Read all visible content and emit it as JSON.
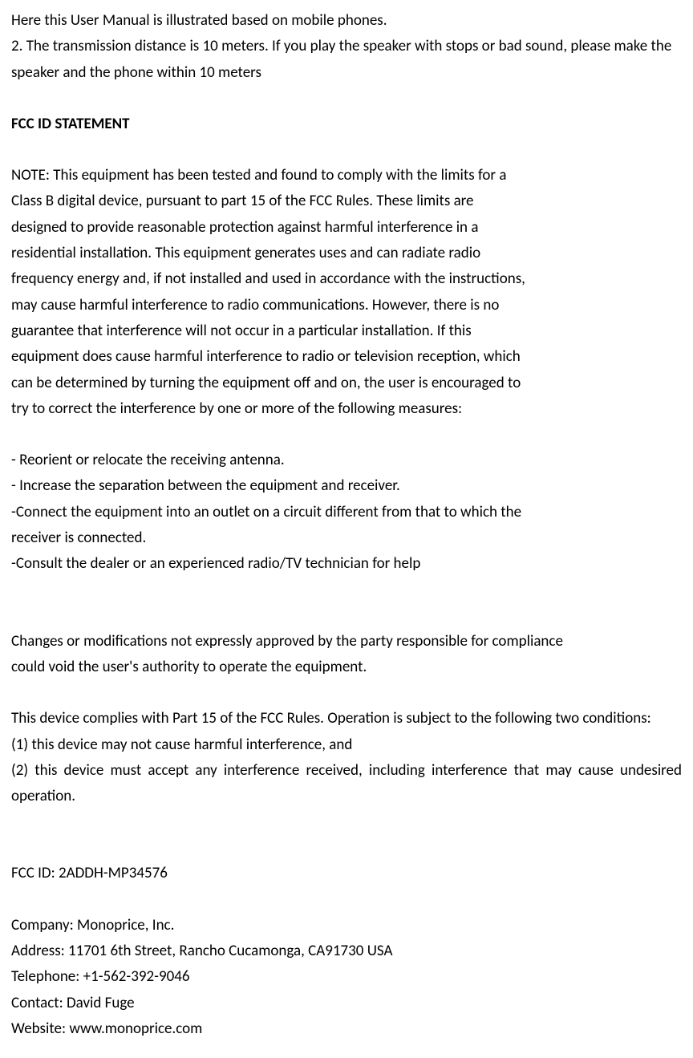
{
  "intro": {
    "line1": "Here this User Manual is illustrated based on mobile phones.",
    "line2": "2. The transmission distance is 10 meters. If you play the speaker with stops or bad sound, please make the speaker and the phone within 10 meters"
  },
  "fcc_heading": "FCC ID STATEMENT",
  "fcc_note": {
    "line1": "NOTE: This equipment has been tested and found to comply with the limits for a",
    "line2": "Class B digital device, pursuant to part 15 of the FCC Rules. These limits are",
    "line3": "designed to provide reasonable protection against harmful interference in a",
    "line4": "residential installation. This equipment generates uses and can radiate radio",
    "line5": "frequency energy and, if not installed and used in accordance with the instructions,",
    "line6": "may cause harmful interference to radio communications. However, there is no",
    "line7": "guarantee that interference will not occur in a particular installation. If this",
    "line8": "equipment does cause harmful interference to radio or television reception, which",
    "line9": "can be determined by turning the equipment off and on, the user is encouraged to",
    "line10": "try to correct the interference by one or more of the following measures:"
  },
  "measures": {
    "m1": "- Reorient or relocate the receiving antenna.",
    "m2": "- Increase the separation between the equipment and receiver.",
    "m3": "-Connect the equipment into an outlet on a circuit different from that to which the",
    "m3b": "receiver is connected.",
    "m4": "-Consult the dealer or an experienced radio/TV technician for help"
  },
  "changes": {
    "line1": "Changes or modifications not expressly approved by the party responsible for compliance",
    "line2": "could void the user's authority to operate the equipment."
  },
  "compliance": {
    "intro": "This device complies with Part 15 of the FCC Rules. Operation is subject to the following two conditions:",
    "c1": "(1) this device may not cause harmful interference, and",
    "c2": "(2) this device must accept any interference received, including interference that may cause undesired operation."
  },
  "fcc_id": "FCC ID: 2ADDH-MP34576",
  "company_info": {
    "company": "Company: Monoprice, Inc.",
    "address": "Address: 11701 6th Street, Rancho Cucamonga, CA91730 USA",
    "telephone": "Telephone: +1-562-392-9046",
    "contact": "Contact: David Fuge",
    "website": "Website: www.monoprice.com"
  }
}
